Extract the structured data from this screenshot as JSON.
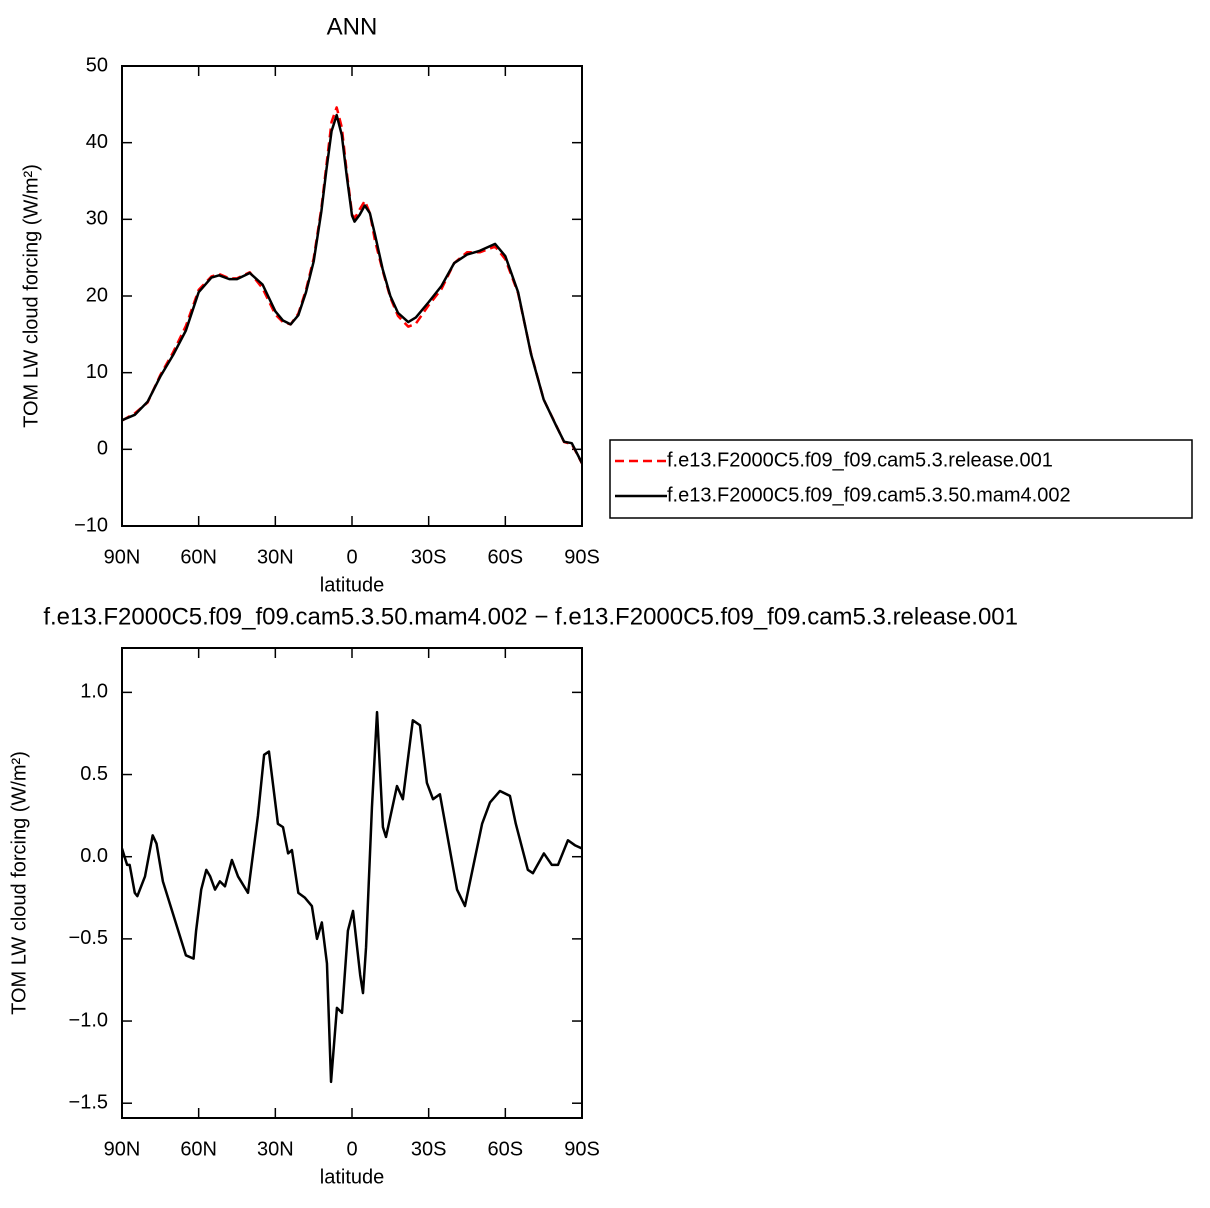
{
  "chart_data": [
    {
      "type": "line",
      "title": "ANN",
      "xlabel": "latitude",
      "ylabel": "TOM LW cloud forcing (W/m²)",
      "x": [
        90,
        85,
        80,
        75,
        70,
        65,
        60,
        55,
        52,
        48,
        45,
        40,
        35,
        30,
        27,
        24,
        21,
        18,
        15,
        12,
        10,
        8,
        6,
        4,
        2,
        0,
        -1,
        -3,
        -5,
        -7,
        -9,
        -12,
        -15,
        -18,
        -22,
        -25,
        -30,
        -35,
        -40,
        -45,
        -50,
        -56,
        -60,
        -65,
        -70,
        -75,
        -80,
        -83,
        -86,
        -90
      ],
      "series": [
        {
          "name": "f.e13.F2000C5.f09_f09.cam5.3.release.001",
          "color": "#ff0000",
          "linestyle": "dashed",
          "values": [
            3.75,
            4.7,
            6.1,
            9.7,
            12.65,
            16.1,
            20.8,
            22.55,
            22.87,
            22.3,
            22.3,
            23.1,
            21.0,
            17.6,
            16.6,
            16.3,
            17.7,
            20.8,
            24.9,
            31.4,
            37.1,
            42.7,
            44.6,
            42.0,
            36.0,
            30.8,
            30.1,
            31.3,
            32.4,
            30.8,
            27.2,
            23.3,
            19.8,
            17.4,
            16.0,
            16.4,
            18.8,
            20.9,
            24.3,
            25.7,
            25.7,
            26.45,
            24.8,
            20.35,
            12.6,
            6.5,
            3.05,
            0.95,
            0.7,
            -1.85
          ]
        },
        {
          "name": "f.e13.F2000C5.f09_f09.cam5.3.50.mam4.002",
          "color": "#000000",
          "linestyle": "solid",
          "values": [
            3.8,
            4.5,
            6.2,
            9.5,
            12.3,
            15.5,
            20.5,
            22.4,
            22.7,
            22.2,
            22.2,
            23.0,
            21.5,
            18,
            16.8,
            16.3,
            17.5,
            20.5,
            24.5,
            31,
            36.5,
            41.5,
            43.6,
            41,
            35.5,
            30.5,
            29.7,
            30.6,
            31.8,
            30.8,
            28,
            23.5,
            20,
            17.8,
            16.6,
            17.2,
            19.2,
            21.3,
            24.3,
            25.4,
            25.9,
            26.8,
            25.2,
            20.5,
            12.5,
            6.5,
            3,
            1.0,
            0.8,
            -1.8
          ]
        }
      ],
      "xlim": [
        90,
        -90
      ],
      "xticks": [
        {
          "value": 90,
          "label": "90N"
        },
        {
          "value": 60,
          "label": "60N"
        },
        {
          "value": 30,
          "label": "30N"
        },
        0,
        {
          "value": -30,
          "label": "30S"
        },
        {
          "value": -60,
          "label": "60S"
        },
        {
          "value": -90,
          "label": "90S"
        }
      ],
      "ylim": [
        -10,
        50
      ],
      "yticks": [
        {
          "value": -10,
          "label": "−10"
        },
        0,
        10,
        20,
        30,
        40,
        50
      ],
      "legend": "right"
    },
    {
      "type": "line",
      "title": "f.e13.F2000C5.f09_f09.cam5.3.50.mam4.002 − f.e13.F2000C5.f09_f09.cam5.3.release.001",
      "xlabel": "latitude",
      "ylabel": "TOM LW cloud forcing (W/m²)",
      "x": [
        90,
        88,
        87,
        85,
        84,
        81,
        78,
        76.5,
        74,
        71,
        67,
        65,
        62,
        61,
        59,
        57,
        55.5,
        53.6,
        51.7,
        49.7,
        47,
        44.6,
        40.7,
        36.8,
        34.4,
        32.5,
        29,
        27,
        25,
        23.5,
        21,
        18.4,
        15.7,
        13.7,
        11.8,
        9.8,
        8.2,
        5.9,
        3.9,
        1.6,
        -0.4,
        -3.2,
        -4.3,
        -5.5,
        -7.8,
        -9.8,
        -12.1,
        -13.3,
        -17.6,
        -19.9,
        -23.8,
        -26.6,
        -29.3,
        -31.7,
        -34.4,
        -41.1,
        -44.2,
        -50.9,
        -54,
        -57.9,
        -61.8,
        -64.1,
        -68.8,
        -70.8,
        -75.1,
        -78.2,
        -80.6,
        -84.5,
        -87.2,
        -90
      ],
      "values": [
        0.05,
        -0.05,
        -0.05,
        -0.22,
        -0.24,
        -0.12,
        0.13,
        0.08,
        -0.15,
        -0.3,
        -0.5,
        -0.6,
        -0.62,
        -0.45,
        -0.2,
        -0.08,
        -0.12,
        -0.2,
        -0.15,
        -0.18,
        -0.02,
        -0.12,
        -0.22,
        0.25,
        0.62,
        0.64,
        0.2,
        0.18,
        0.02,
        0.04,
        -0.22,
        -0.25,
        -0.3,
        -0.5,
        -0.4,
        -0.65,
        -1.37,
        -0.92,
        -0.95,
        -0.45,
        -0.33,
        -0.72,
        -0.83,
        -0.55,
        0.3,
        0.88,
        0.18,
        0.12,
        0.43,
        0.35,
        0.83,
        0.8,
        0.45,
        0.35,
        0.38,
        -0.2,
        -0.3,
        0.2,
        0.33,
        0.4,
        0.37,
        0.2,
        -0.08,
        -0.1,
        0.02,
        -0.05,
        -0.05,
        0.1,
        0.07,
        0.05
      ],
      "color": "#000000",
      "xlim": [
        90,
        -90
      ],
      "xticks": [
        {
          "value": 90,
          "label": "90N"
        },
        {
          "value": 60,
          "label": "60N"
        },
        {
          "value": 30,
          "label": "30N"
        },
        0,
        {
          "value": -30,
          "label": "30S"
        },
        {
          "value": -60,
          "label": "60S"
        },
        {
          "value": -90,
          "label": "90S"
        }
      ],
      "ylim": [
        -1.59,
        1.27
      ],
      "yticks": [
        {
          "value": -1.5,
          "label": "−1.5"
        },
        {
          "value": -1.0,
          "label": "−1.0"
        },
        {
          "value": -0.5,
          "label": "−0.5"
        },
        {
          "value": 0,
          "label": "0.0"
        },
        {
          "value": 0.5,
          "label": "0.5"
        },
        {
          "value": 1.0,
          "label": "1.0"
        }
      ]
    }
  ]
}
